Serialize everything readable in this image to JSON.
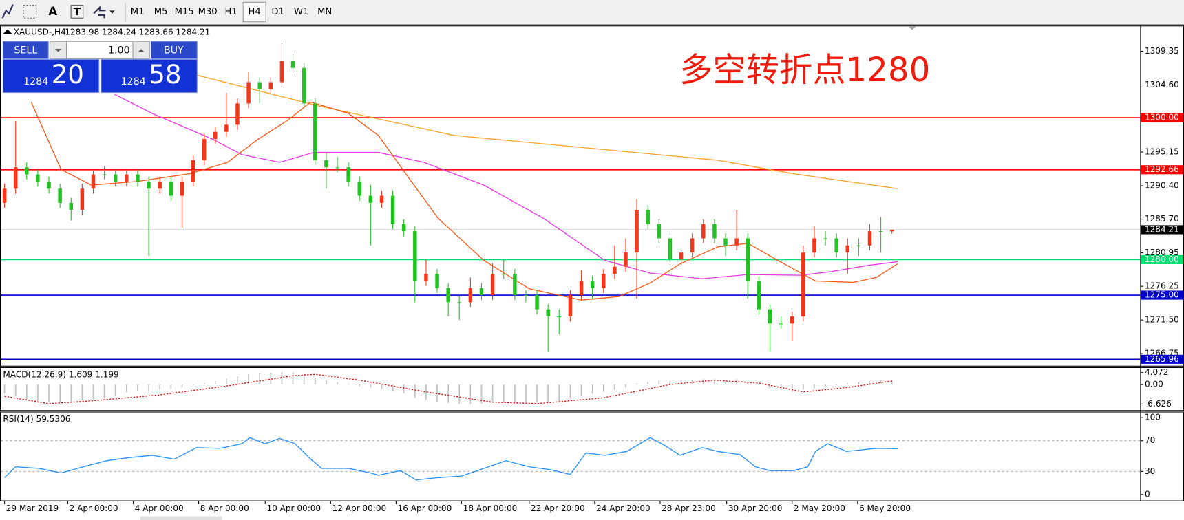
{
  "toolbar": {
    "text_tool": "A",
    "label_tool": "T",
    "timeframes": [
      "M1",
      "M5",
      "M15",
      "M30",
      "H1",
      "H4",
      "D1",
      "W1",
      "MN"
    ],
    "selected_index": 5
  },
  "chart_data": [
    {
      "type": "candlestick",
      "symbol": "XAUUSD-,H4",
      "quote": "1283.98 1284.24 1283.66 1284.21",
      "annotation": "多空转折点1280",
      "trade_panel": {
        "sell": "SELL",
        "buy": "BUY",
        "lot": "1.00",
        "sell_big": "1284",
        "sell_pips": "20",
        "buy_big": "1284",
        "buy_pips": "58"
      },
      "up_color": "#f4361a",
      "down_color": "#22c322",
      "open": [
        1288,
        1290,
        1293,
        1292,
        1291,
        1290,
        1288,
        1287,
        1290,
        1292,
        1292,
        1291,
        1292,
        1291,
        1290,
        1291,
        1289,
        1291,
        1294,
        1297,
        1298,
        1299,
        1302,
        1305,
        1304,
        1305,
        1308,
        1307,
        1302,
        1294,
        1293,
        1293,
        1291,
        1289,
        1288,
        1289,
        1285,
        1284,
        1277,
        1278,
        1276,
        1274,
        1274,
        1276,
        1275,
        1278,
        1278,
        1275,
        1275,
        1273,
        1272,
        1272,
        1275,
        1277,
        1276,
        1278,
        1279,
        1281,
        1287,
        1285,
        1283,
        1280,
        1281,
        1283,
        1285,
        1283,
        1282,
        1283,
        1277,
        1273,
        1271,
        1271,
        1272,
        1281,
        1283,
        1283,
        1281,
        1282,
        1282,
        1284,
        1283.98
      ],
      "high": [
        1290.7,
        1299.5,
        1293.7,
        1292.7,
        1291.7,
        1290.7,
        1288.7,
        1290.7,
        1292.7,
        1293.2,
        1292.7,
        1292.7,
        1292.7,
        1291.7,
        1291.7,
        1291.7,
        1291.7,
        1294.7,
        1297.7,
        1298.7,
        1303.5,
        1302.7,
        1306.5,
        1305.7,
        1305.7,
        1310.5,
        1309,
        1307.7,
        1302.7,
        1295,
        1294.5,
        1293.7,
        1291.7,
        1290.5,
        1289.7,
        1289.7,
        1285.7,
        1284.7,
        1280,
        1278.7,
        1276.7,
        1275,
        1277.5,
        1276.7,
        1279.5,
        1280,
        1278.7,
        1275.7,
        1275.7,
        1273.7,
        1273,
        1275.7,
        1278.5,
        1277.7,
        1278.7,
        1282,
        1283,
        1288.5,
        1287.7,
        1285.7,
        1283.7,
        1281.7,
        1283.7,
        1285.7,
        1285.7,
        1283.7,
        1287,
        1283.7,
        1277.7,
        1273.7,
        1272,
        1272.7,
        1282,
        1284.7,
        1284,
        1283.7,
        1283,
        1283,
        1285,
        1286,
        1284.24
      ],
      "low": [
        1287.3,
        1289.3,
        1291.3,
        1290.3,
        1289.3,
        1287.3,
        1285.5,
        1286.3,
        1289.3,
        1291.3,
        1290.3,
        1290.3,
        1290.3,
        1280.5,
        1289.3,
        1288.3,
        1284.5,
        1290.3,
        1293.3,
        1296.3,
        1297.3,
        1298.3,
        1301.3,
        1302,
        1303.3,
        1304.3,
        1306.3,
        1301.3,
        1293.3,
        1290,
        1292.3,
        1290.3,
        1288.3,
        1282,
        1287.3,
        1284.3,
        1283.3,
        1274,
        1276.3,
        1275.3,
        1272,
        1271.5,
        1273.3,
        1274.3,
        1274.3,
        1277.3,
        1274.3,
        1274,
        1272.3,
        1267,
        1269.5,
        1271.3,
        1274.3,
        1274.5,
        1275.3,
        1277.3,
        1278.3,
        1274.5,
        1284.3,
        1282.3,
        1279.3,
        1279.3,
        1280.3,
        1282.3,
        1282.3,
        1280.5,
        1281.3,
        1274.5,
        1272.3,
        1267,
        1270.3,
        1268.5,
        1271.3,
        1280.3,
        1282,
        1280.3,
        1278,
        1280.5,
        1281.3,
        1281,
        1283.66
      ],
      "close": [
        1290,
        1293,
        1292,
        1291,
        1290,
        1288,
        1287,
        1290,
        1292,
        1292,
        1291,
        1292,
        1291,
        1290,
        1291,
        1289,
        1291,
        1294,
        1297,
        1298,
        1299,
        1302,
        1305,
        1304,
        1305,
        1308,
        1307,
        1302,
        1294,
        1293,
        1293,
        1291,
        1289,
        1288,
        1289,
        1285,
        1284,
        1277,
        1278,
        1276,
        1274,
        1274,
        1276,
        1275,
        1278,
        1278,
        1275,
        1275,
        1273,
        1272,
        1272,
        1275,
        1277,
        1276,
        1278,
        1279,
        1281,
        1287,
        1285,
        1283,
        1280,
        1281,
        1283,
        1285,
        1283,
        1282,
        1283,
        1277,
        1273,
        1271,
        1271,
        1272,
        1281,
        1283,
        1283,
        1281,
        1282,
        1282,
        1284,
        1283.98,
        1284.21
      ],
      "series": [
        {
          "color": "#ffa020",
          "x": [
            17.3,
            28.2,
            40.5,
            54.1,
            64.3,
            71.1,
            80.5
          ],
          "values": [
            1306,
            1301.7,
            1297.5,
            1295.5,
            1294,
            1292.1,
            1290
          ]
        },
        {
          "color": "#ee33ee",
          "x": [
            9.9,
            13.3,
            18.7,
            21.4,
            24.8,
            27.9,
            33.7,
            37.8,
            43.2,
            48.6,
            54.1,
            58.2,
            62.9,
            67,
            71.8,
            74.5,
            77.9,
            80.5
          ],
          "values": [
            1303.3,
            1300.6,
            1297,
            1294.8,
            1293.7,
            1295.1,
            1295.1,
            1293.7,
            1290.5,
            1285.8,
            1279.9,
            1278.1,
            1277.3,
            1277.9,
            1277.8,
            1278.3,
            1279.2,
            1279.7
          ]
        },
        {
          "color": "#ff5511",
          "x": [
            2.4,
            5.1,
            7.8,
            11.9,
            16.7,
            20.1,
            22.8,
            25.5,
            27.6,
            31,
            33.7,
            36.4,
            39.1,
            43.2,
            47.3,
            52,
            55.4,
            58.2,
            60.9,
            64.3,
            67,
            69.7,
            73.1,
            76.5,
            78.6,
            80.5
          ],
          "values": [
            1302.2,
            1292.7,
            1290.5,
            1291,
            1292.1,
            1293.7,
            1296.9,
            1299.6,
            1302.2,
            1300.6,
            1297.5,
            1291.6,
            1285.8,
            1279.9,
            1275.9,
            1274.3,
            1274.8,
            1276.7,
            1279.4,
            1281.8,
            1282.3,
            1279.9,
            1277,
            1276.8,
            1277.5,
            1279.4
          ]
        }
      ],
      "hlines": [
        {
          "value": 1300,
          "label": "1300.00",
          "color": "#ff0000",
          "text_color": "#ffffff"
        },
        {
          "value": 1292.66,
          "color": "#ff0000",
          "text_color": "#ffffff"
        },
        {
          "value": 1284.21,
          "color": "#c8c8c8",
          "label_bg": "#000000",
          "text_color": "#ffffff"
        },
        {
          "value": 1280,
          "label": "1280.00",
          "color": "#00e070",
          "text_color": "#ffffff"
        },
        {
          "value": 1275,
          "label": "1275.00",
          "color": "#0000cc",
          "text_color": "#ffffff"
        },
        {
          "value": 1265.96,
          "color": "#0000cc",
          "text_color": "#ffffff"
        }
      ],
      "ylim": [
        1265.05,
        1312.86
      ],
      "yticks": [
        1309.35,
        {
          "value": 1304.6,
          "label": "1304.60"
        },
        1295.15,
        {
          "value": 1290.4,
          "label": "1290.40"
        },
        {
          "value": 1285.7,
          "label": "1285.70"
        },
        1280.95,
        1276.25,
        {
          "value": 1271.5,
          "label": "1271.50"
        },
        1266.75
      ],
      "xlim": [
        -0.34,
        102.38
      ],
      "xticks": [
        {
          "value": 0,
          "label": "29 Mar 2019"
        },
        {
          "value": 5.7,
          "label": "2 Apr 00:00"
        },
        {
          "value": 11.6,
          "label": "4 Apr 00:00"
        },
        {
          "value": 17.5,
          "label": "8 Apr 00:00"
        },
        {
          "value": 23.5,
          "label": "10 Apr 00:00"
        },
        {
          "value": 29.4,
          "label": "12 Apr 00:00"
        },
        {
          "value": 35.3,
          "label": "16 Apr 00:00"
        },
        {
          "value": 41.2,
          "label": "18 Apr 00:00"
        },
        {
          "value": 47.3,
          "label": "22 Apr 20:00"
        },
        {
          "value": 53.2,
          "label": "24 Apr 20:00"
        },
        {
          "value": 59.1,
          "label": "28 Apr 23:00"
        },
        {
          "value": 65.1,
          "label": "30 Apr 20:00"
        },
        {
          "value": 71,
          "label": "2 May 20:00"
        },
        {
          "value": 76.9,
          "label": "6 May 20:00"
        }
      ]
    },
    {
      "type": "macd",
      "title": "MACD(12,26,9) 1.609 1.199",
      "histogram": {
        "color": "#c0c0c0",
        "values": [
          -3,
          -4,
          -5,
          -5.5,
          -6,
          -6,
          -5.8,
          -5.5,
          -5,
          -4.5,
          -4,
          -2.6,
          -2.2,
          -2,
          -1.8,
          -1.5,
          -1,
          -0.3,
          0.5,
          1.2,
          2,
          2.8,
          3.5,
          3.8,
          4,
          4.2,
          4.1,
          3.6,
          2.5,
          1.5,
          0.8,
          0.2,
          -0.5,
          -1,
          -1.5,
          -2.2,
          -3,
          -4.5,
          -5.2,
          -5.8,
          -6.3,
          -6.6,
          -6.6,
          -6.5,
          -6.2,
          -6,
          -6,
          -5.9,
          -5.8,
          -5.8,
          -5.5,
          -4.8,
          -4,
          -3.2,
          -2.5,
          -1.8,
          -1,
          0.3,
          1,
          1.3,
          1.3,
          1.4,
          1.6,
          1.8,
          1.8,
          1.7,
          1.8,
          1,
          -0.2,
          -1.2,
          -2,
          -2.4,
          -1.8,
          -1.2,
          -0.6,
          -0.2,
          0.4,
          0.8,
          1.2,
          1.4,
          1.609
        ]
      },
      "signal": {
        "color": "#e00000",
        "x": [
          0,
          4,
          8,
          14,
          20,
          26,
          28,
          32,
          38,
          44,
          48,
          54,
          60,
          64,
          68,
          72,
          76,
          80
        ],
        "values": [
          -4,
          -6.5,
          -5.5,
          -3.5,
          -0.5,
          3,
          3.5,
          1.5,
          -2.5,
          -6,
          -6.5,
          -4.5,
          0,
          1.5,
          0.5,
          -2.5,
          -1,
          1.199
        ]
      },
      "ylim": [
        -8.71,
        5.64
      ],
      "yticks": [
        4.072,
        {
          "value": 0,
          "label": "0.00"
        },
        -6.626
      ],
      "xlim": [
        -0.34,
        102.38
      ]
    },
    {
      "type": "line",
      "title": "RSI(14) 59.5306",
      "series": [
        {
          "color": "#1e90ff",
          "x": [
            0,
            1,
            3.1,
            5.1,
            7.1,
            9.2,
            11.2,
            13.3,
            15.3,
            17.3,
            19.4,
            21.4,
            22.1,
            23.5,
            24.8,
            26.2,
            27.6,
            28.6,
            31,
            33,
            33.7,
            35.7,
            37.1,
            39.1,
            41.2,
            43.2,
            45.2,
            47.3,
            49.3,
            51,
            52.4,
            54.1,
            56.1,
            58.2,
            59.5,
            60.9,
            62.9,
            64.3,
            66.3,
            67.7,
            69,
            71.1,
            72.4,
            73.1,
            74.2,
            75.9,
            77.2,
            78.6,
            80.5
          ],
          "values": [
            22,
            36,
            34,
            28,
            36,
            44,
            48,
            51,
            46,
            61,
            60,
            66,
            74,
            66,
            73,
            66,
            46,
            34,
            34,
            28,
            25,
            31,
            19,
            22,
            24,
            34,
            44,
            36,
            32,
            26,
            54,
            51,
            56,
            74,
            64,
            51,
            61,
            56,
            52,
            36,
            31,
            31,
            36,
            56,
            66,
            56,
            58,
            60,
            59.5306
          ]
        }
      ],
      "levels": [
        70,
        30
      ],
      "ylim": [
        -7.8,
        106.9
      ],
      "yticks": [
        100,
        70,
        30,
        0
      ],
      "xlim": [
        -0.34,
        102.38
      ]
    }
  ]
}
